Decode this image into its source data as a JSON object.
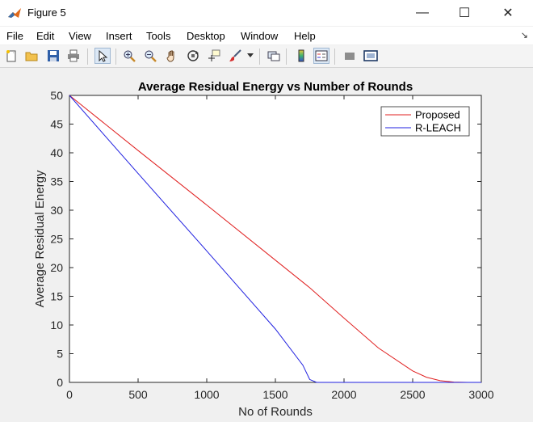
{
  "window": {
    "title": "Figure 5",
    "minimize_glyph": "—",
    "maximize_glyph": "☐",
    "close_glyph": "✕"
  },
  "menu": {
    "items": [
      "File",
      "Edit",
      "View",
      "Insert",
      "Tools",
      "Desktop",
      "Window",
      "Help"
    ],
    "overflow_glyph": "↘"
  },
  "toolbar": {
    "buttons": [
      "new-figure-icon",
      "open-folder-icon",
      "save-icon",
      "print-icon",
      "pointer-icon",
      "zoom-in-icon",
      "zoom-out-icon",
      "pan-hand-icon",
      "rotate-3d-icon",
      "data-cursor-icon",
      "brush-icon",
      "brush-dropdown-icon",
      "link-plot-icon",
      "colorbar-icon",
      "legend-icon",
      "hide-plot-tools-icon",
      "show-plot-tools-icon"
    ]
  },
  "chart_data": {
    "type": "line",
    "title": "Average Residual Energy vs Number of Rounds",
    "xlabel": "No of Rounds",
    "ylabel": "Average Residual Energy",
    "xlim": [
      0,
      3000
    ],
    "ylim": [
      0,
      50
    ],
    "xticks": [
      "0",
      "500",
      "1000",
      "1500",
      "2000",
      "2500",
      "3000"
    ],
    "yticks": [
      "0",
      "5",
      "10",
      "15",
      "20",
      "25",
      "30",
      "35",
      "40",
      "45",
      "50"
    ],
    "grid": false,
    "legend_position": "top-right",
    "series": [
      {
        "name": "Proposed",
        "color": "#e02020",
        "x": [
          0,
          500,
          1000,
          1500,
          1750,
          2000,
          2250,
          2500,
          2600,
          2700,
          2800,
          2900,
          3000
        ],
        "y": [
          50,
          40.4,
          30.9,
          21.3,
          16.5,
          11.2,
          6.0,
          2.0,
          0.9,
          0.3,
          0.05,
          0,
          0
        ]
      },
      {
        "name": "R-LEACH",
        "color": "#2020e0",
        "x": [
          0,
          500,
          1000,
          1500,
          1700,
          1750,
          1800,
          2000,
          2500,
          3000
        ],
        "y": [
          50,
          36.4,
          22.9,
          9.3,
          3.0,
          0.5,
          0,
          0,
          0,
          0
        ]
      }
    ]
  }
}
